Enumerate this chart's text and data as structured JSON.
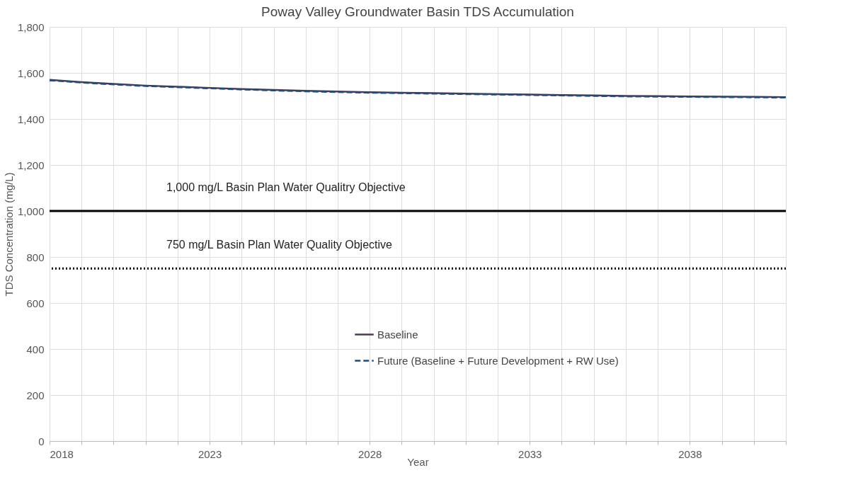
{
  "chart_data": {
    "type": "line",
    "title": "Poway Valley Groundwater Basin TDS Accumulation",
    "xlabel": "Year",
    "ylabel": "TDS Concentration (mg/L)",
    "x": [
      2018,
      2019,
      2020,
      2021,
      2022,
      2023,
      2024,
      2025,
      2026,
      2027,
      2028,
      2029,
      2030,
      2031,
      2032,
      2033,
      2034,
      2035,
      2036,
      2037,
      2038,
      2039,
      2040,
      2041
    ],
    "series": [
      {
        "name": "Baseline",
        "color": "#4a3a55",
        "line_style": "solid",
        "values": [
          1570,
          1560,
          1552,
          1545,
          1540,
          1535,
          1530,
          1526,
          1522,
          1519,
          1516,
          1514,
          1512,
          1510,
          1508,
          1506,
          1504,
          1502,
          1500,
          1499,
          1498,
          1497,
          1496,
          1495
        ]
      },
      {
        "name": "Future (Baseline + Future Development + RW Use)",
        "color": "#1f4e79",
        "line_style": "dashed",
        "values": [
          1568,
          1558,
          1550,
          1543,
          1538,
          1533,
          1528,
          1524,
          1520,
          1517,
          1514,
          1512,
          1510,
          1508,
          1506,
          1504,
          1502,
          1500,
          1498,
          1497,
          1496,
          1495,
          1494,
          1493
        ]
      }
    ],
    "xlim": [
      2018,
      2041
    ],
    "xticks": [
      2018,
      {
        "value": 2019,
        "label": null
      },
      {
        "value": 2020,
        "label": null
      },
      {
        "value": 2021,
        "label": null
      },
      {
        "value": 2022,
        "label": null
      },
      2023,
      {
        "value": 2024,
        "label": null
      },
      {
        "value": 2025,
        "label": null
      },
      {
        "value": 2026,
        "label": null
      },
      {
        "value": 2027,
        "label": null
      },
      2028,
      {
        "value": 2029,
        "label": null
      },
      {
        "value": 2030,
        "label": null
      },
      {
        "value": 2031,
        "label": null
      },
      {
        "value": 2032,
        "label": null
      },
      2033,
      {
        "value": 2034,
        "label": null
      },
      {
        "value": 2035,
        "label": null
      },
      {
        "value": 2036,
        "label": null
      },
      {
        "value": 2037,
        "label": null
      },
      2038,
      {
        "value": 2039,
        "label": null
      },
      {
        "value": 2040,
        "label": null
      },
      {
        "value": 2041,
        "label": null
      }
    ],
    "ylim": [
      0,
      1800
    ],
    "yticks": [
      {
        "value": 0,
        "label": "0"
      },
      {
        "value": 200,
        "label": "200"
      },
      {
        "value": 400,
        "label": "400"
      },
      {
        "value": 600,
        "label": "600"
      },
      {
        "value": 800,
        "label": "800"
      },
      {
        "value": 1000,
        "label": "1,000"
      },
      {
        "value": 1200,
        "label": "1,200"
      },
      {
        "value": 1400,
        "label": "1,400"
      },
      {
        "value": 1600,
        "label": "1,600"
      },
      {
        "value": 1800,
        "label": "1,800"
      }
    ],
    "ref_lines": [
      {
        "axis": "y",
        "value": 1000,
        "label": "1,000 mg/L Basin Plan Water  Qualitry  Objective",
        "color": "#000000",
        "line_style": "solid"
      },
      {
        "axis": "y",
        "value": 750,
        "label": "750 mg/L Basin Plan Water  Quality  Objective",
        "color": "#000000",
        "line_style": "dotted"
      }
    ],
    "grid": true,
    "legend": "bottom right",
    "marker": "none"
  }
}
